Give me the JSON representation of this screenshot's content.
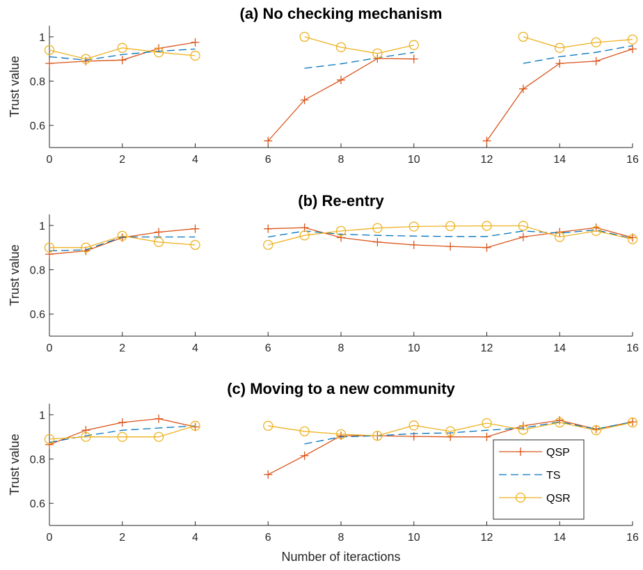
{
  "colors": {
    "QSP": "#D95319",
    "TS": "#0072BD",
    "QSR": "#EDB120",
    "axis": "#262626"
  },
  "chart_data": [
    {
      "type": "line",
      "title": "(a) No checking mechanism",
      "ylabel": "Trust value",
      "xlabel": "",
      "xlim": [
        0,
        16
      ],
      "ylim": [
        0.5,
        1.05
      ],
      "xticks": [
        "0",
        "2",
        "4",
        "6",
        "8",
        "10",
        "12",
        "14",
        "16"
      ],
      "yticks": [
        "0.6",
        "0.8",
        "1"
      ],
      "series": [
        {
          "name": "QSP",
          "style": "solid-plus",
          "segments": [
            [
              [
                0,
                0.88
              ],
              [
                1,
                0.89
              ],
              [
                2,
                0.895
              ],
              [
                3,
                0.948
              ],
              [
                4,
                0.975
              ]
            ],
            [
              [
                6,
                0.53
              ],
              [
                7,
                0.715
              ],
              [
                8,
                0.805
              ],
              [
                9,
                0.902
              ],
              [
                10,
                0.9
              ]
            ],
            [
              [
                12,
                0.53
              ],
              [
                13,
                0.765
              ],
              [
                14,
                0.88
              ],
              [
                15,
                0.89
              ],
              [
                16,
                0.945
              ]
            ]
          ]
        },
        {
          "name": "TS",
          "style": "dashed",
          "segments": [
            [
              [
                0,
                0.91
              ],
              [
                1,
                0.895
              ],
              [
                2,
                0.92
              ],
              [
                3,
                0.935
              ],
              [
                4,
                0.945
              ]
            ],
            [
              [
                7,
                0.858
              ],
              [
                8,
                0.878
              ],
              [
                9,
                0.905
              ],
              [
                10,
                0.93
              ]
            ],
            [
              [
                13,
                0.88
              ],
              [
                14,
                0.91
              ],
              [
                15,
                0.93
              ],
              [
                16,
                0.96
              ]
            ]
          ]
        },
        {
          "name": "QSR",
          "style": "solid-circle",
          "segments": [
            [
              [
                0,
                0.94
              ],
              [
                1,
                0.9
              ],
              [
                2,
                0.95
              ],
              [
                3,
                0.93
              ],
              [
                4,
                0.915
              ]
            ],
            [
              [
                7,
                1.0
              ],
              [
                8,
                0.953
              ],
              [
                9,
                0.925
              ],
              [
                10,
                0.963
              ]
            ],
            [
              [
                13,
                1.0
              ],
              [
                14,
                0.95
              ],
              [
                15,
                0.975
              ],
              [
                16,
                0.988
              ]
            ]
          ]
        }
      ]
    },
    {
      "type": "line",
      "title": "(b) Re-entry",
      "ylabel": "Trust value",
      "xlabel": "",
      "xlim": [
        0,
        16
      ],
      "ylim": [
        0.5,
        1.05
      ],
      "xticks": [
        "0",
        "2",
        "4",
        "6",
        "8",
        "10",
        "12",
        "14",
        "16"
      ],
      "yticks": [
        "0.6",
        "0.8",
        "1"
      ],
      "series": [
        {
          "name": "QSP",
          "style": "solid-plus",
          "segments": [
            [
              [
                0,
                0.87
              ],
              [
                1,
                0.885
              ],
              [
                2,
                0.945
              ],
              [
                3,
                0.97
              ],
              [
                4,
                0.985
              ]
            ],
            [
              [
                6,
                0.985
              ],
              [
                7,
                0.99
              ],
              [
                8,
                0.945
              ],
              [
                9,
                0.925
              ],
              [
                10,
                0.912
              ],
              [
                11,
                0.905
              ],
              [
                12,
                0.9
              ],
              [
                13,
                0.948
              ],
              [
                14,
                0.97
              ],
              [
                15,
                0.99
              ],
              [
                16,
                0.945
              ]
            ]
          ]
        },
        {
          "name": "TS",
          "style": "dashed",
          "segments": [
            [
              [
                0,
                0.885
              ],
              [
                1,
                0.89
              ],
              [
                2,
                0.948
              ],
              [
                3,
                0.948
              ],
              [
                4,
                0.948
              ]
            ],
            [
              [
                6,
                0.948
              ],
              [
                7,
                0.975
              ],
              [
                8,
                0.96
              ],
              [
                9,
                0.955
              ],
              [
                10,
                0.952
              ],
              [
                11,
                0.95
              ],
              [
                12,
                0.95
              ],
              [
                13,
                0.975
              ],
              [
                14,
                0.965
              ],
              [
                15,
                0.98
              ],
              [
                16,
                0.94
              ]
            ]
          ]
        },
        {
          "name": "QSR",
          "style": "solid-circle",
          "segments": [
            [
              [
                0,
                0.9
              ],
              [
                1,
                0.9
              ],
              [
                2,
                0.953
              ],
              [
                3,
                0.925
              ],
              [
                4,
                0.912
              ]
            ],
            [
              [
                6,
                0.912
              ],
              [
                7,
                0.955
              ],
              [
                8,
                0.975
              ],
              [
                9,
                0.988
              ],
              [
                10,
                0.995
              ],
              [
                11,
                0.997
              ],
              [
                12,
                0.998
              ],
              [
                13,
                0.998
              ],
              [
                14,
                0.948
              ],
              [
                15,
                0.975
              ],
              [
                16,
                0.938
              ]
            ]
          ]
        }
      ]
    },
    {
      "type": "line",
      "title": "(c) Moving to a new community",
      "ylabel": "Trust value",
      "xlabel": "Number of iteractions",
      "xlim": [
        0,
        16
      ],
      "ylim": [
        0.5,
        1.05
      ],
      "xticks": [
        "0",
        "2",
        "4",
        "6",
        "8",
        "10",
        "12",
        "14",
        "16"
      ],
      "yticks": [
        "0.6",
        "0.8",
        "1"
      ],
      "legend": {
        "position": "bottom-right",
        "entries": [
          "QSP",
          "TS",
          "QSR"
        ]
      },
      "series": [
        {
          "name": "QSP",
          "style": "solid-plus",
          "segments": [
            [
              [
                0,
                0.865
              ],
              [
                1,
                0.93
              ],
              [
                2,
                0.965
              ],
              [
                3,
                0.982
              ],
              [
                4,
                0.945
              ]
            ],
            [
              [
                6,
                0.73
              ],
              [
                7,
                0.815
              ],
              [
                8,
                0.905
              ],
              [
                9,
                0.905
              ],
              [
                10,
                0.902
              ],
              [
                11,
                0.9
              ],
              [
                12,
                0.9
              ],
              [
                13,
                0.95
              ],
              [
                14,
                0.975
              ],
              [
                15,
                0.935
              ],
              [
                16,
                0.968
              ]
            ]
          ]
        },
        {
          "name": "TS",
          "style": "dashed",
          "segments": [
            [
              [
                0,
                0.875
              ],
              [
                1,
                0.905
              ],
              [
                2,
                0.93
              ],
              [
                3,
                0.94
              ],
              [
                4,
                0.95
              ]
            ],
            [
              [
                7,
                0.868
              ],
              [
                8,
                0.9
              ],
              [
                9,
                0.905
              ],
              [
                10,
                0.915
              ],
              [
                11,
                0.918
              ],
              [
                12,
                0.93
              ],
              [
                13,
                0.94
              ],
              [
                14,
                0.968
              ],
              [
                15,
                0.935
              ],
              [
                16,
                0.968
              ]
            ]
          ]
        },
        {
          "name": "QSR",
          "style": "solid-circle",
          "segments": [
            [
              [
                0,
                0.89
              ],
              [
                1,
                0.9
              ],
              [
                2,
                0.9
              ],
              [
                3,
                0.9
              ],
              [
                4,
                0.95
              ]
            ],
            [
              [
                6,
                0.95
              ],
              [
                7,
                0.925
              ],
              [
                8,
                0.912
              ],
              [
                9,
                0.905
              ],
              [
                10,
                0.952
              ],
              [
                11,
                0.925
              ],
              [
                12,
                0.962
              ],
              [
                13,
                0.932
              ],
              [
                14,
                0.965
              ],
              [
                15,
                0.93
              ],
              [
                16,
                0.965
              ]
            ]
          ]
        }
      ]
    }
  ]
}
